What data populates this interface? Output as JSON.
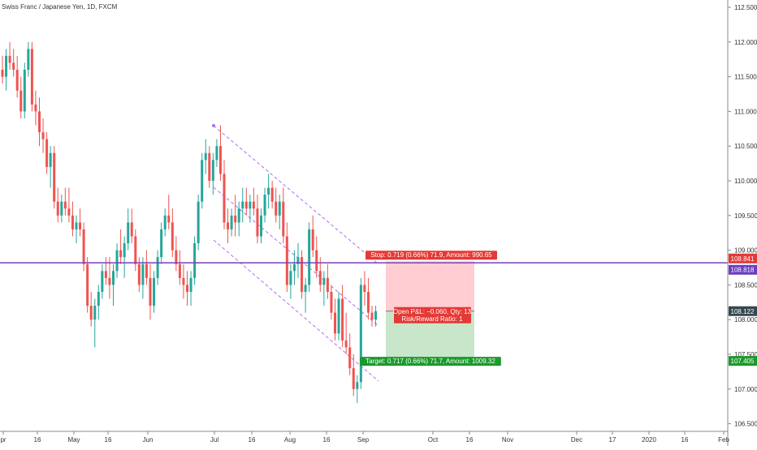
{
  "header": {
    "symbol_title": "Swiss Franc / Japanese Yen, 1D, FXCM"
  },
  "colors": {
    "up_candle": "#26a69a",
    "down_candle": "#ef5350",
    "channel": "#b36bf0",
    "horizontal_line": "#7b3fb8",
    "stop_zone": "#ffcdd2",
    "target_zone": "#c8e6c9",
    "stop_label_bg": "#e53935",
    "target_label_bg": "#1a9a2a",
    "last_price_bg": "#37474f",
    "level_red_bg": "#e53935",
    "level_purple_bg": "#6a3dbf",
    "target_price_bg": "#1a9a2a"
  },
  "price_axis": {
    "ticks": [
      "112.500",
      "112.000",
      "111.500",
      "111.000",
      "110.500",
      "110.000",
      "109.500",
      "109.000",
      "108.500",
      "108.000",
      "107.500",
      "107.000",
      "106.500"
    ],
    "min": 106.4,
    "max": 112.6
  },
  "time_axis": {
    "ticks": [
      "pr",
      "16",
      "May",
      "16",
      "Jun",
      "Jul",
      "16",
      "Aug",
      "16",
      "Sep",
      "Oct",
      "16",
      "Nov",
      "Dec",
      "17",
      "2020",
      "16",
      "Feb"
    ]
  },
  "price_labels": {
    "red_level": "108.841",
    "purple_level": "108.818",
    "last_price": "108.122",
    "target_level": "107.405"
  },
  "position": {
    "stop_label": "Stop: 0.719 (0.66%) 71.9, Amount: 990.65",
    "open_pnl_label": "Open P&L: −0.060, Qty: 13",
    "rr_label": "Risk/Reward Ratio: 1",
    "target_label": "Target: 0.717 (0.66%) 71.7, Amount: 1009.32",
    "stop_price": 108.841,
    "entry_price": 108.122,
    "target_price": 107.405
  },
  "horizontal_line_price": 108.818,
  "chart_data": {
    "type": "candlestick",
    "title": "Swiss Franc / Japanese Yen, 1D, FXCM",
    "xlabel": "",
    "ylabel": "",
    "ylim": [
      106.4,
      112.6
    ],
    "series": [
      {
        "name": "",
        "ohlc": [
          [
            111.6,
            111.8,
            111.4,
            111.5
          ],
          [
            111.5,
            111.9,
            111.3,
            111.8
          ],
          [
            111.8,
            112.0,
            111.6,
            111.7
          ],
          [
            111.7,
            111.9,
            111.5,
            111.6
          ],
          [
            111.6,
            111.8,
            111.2,
            111.3
          ],
          [
            111.3,
            111.5,
            110.9,
            111.0
          ],
          [
            111.0,
            111.7,
            110.9,
            111.6
          ],
          [
            111.6,
            112.0,
            111.5,
            111.9
          ],
          [
            111.9,
            112.0,
            111.0,
            111.1
          ],
          [
            111.1,
            111.3,
            110.8,
            111.0
          ],
          [
            111.0,
            111.2,
            110.5,
            110.7
          ],
          [
            110.7,
            110.9,
            110.4,
            110.6
          ],
          [
            110.6,
            110.7,
            110.1,
            110.2
          ],
          [
            110.2,
            110.5,
            109.9,
            110.4
          ],
          [
            110.4,
            110.5,
            109.6,
            109.7
          ],
          [
            109.7,
            109.9,
            109.4,
            109.5
          ],
          [
            109.5,
            109.8,
            109.4,
            109.7
          ],
          [
            109.7,
            109.9,
            109.5,
            109.6
          ],
          [
            109.6,
            109.9,
            109.4,
            109.5
          ],
          [
            109.5,
            109.7,
            109.2,
            109.3
          ],
          [
            109.3,
            109.5,
            109.1,
            109.4
          ],
          [
            109.4,
            109.6,
            109.2,
            109.3
          ],
          [
            109.3,
            109.4,
            108.7,
            108.8
          ],
          [
            108.8,
            108.9,
            108.1,
            108.2
          ],
          [
            108.2,
            108.4,
            107.9,
            108.0
          ],
          [
            108.0,
            108.3,
            107.6,
            108.2
          ],
          [
            108.2,
            108.5,
            108.0,
            108.4
          ],
          [
            108.4,
            108.8,
            108.3,
            108.7
          ],
          [
            108.7,
            108.9,
            108.5,
            108.6
          ],
          [
            108.6,
            108.9,
            108.3,
            108.5
          ],
          [
            108.5,
            108.8,
            108.2,
            108.7
          ],
          [
            108.7,
            109.1,
            108.6,
            109.0
          ],
          [
            109.0,
            109.3,
            108.8,
            108.9
          ],
          [
            108.9,
            109.2,
            108.6,
            109.1
          ],
          [
            109.1,
            109.6,
            109.0,
            109.4
          ],
          [
            109.4,
            109.6,
            109.1,
            109.2
          ],
          [
            109.2,
            109.3,
            108.7,
            108.8
          ],
          [
            108.8,
            108.9,
            108.4,
            108.5
          ],
          [
            108.5,
            108.9,
            108.3,
            108.8
          ],
          [
            108.8,
            109.0,
            108.5,
            108.6
          ],
          [
            108.6,
            108.8,
            108.0,
            108.2
          ],
          [
            108.2,
            108.7,
            108.1,
            108.6
          ],
          [
            108.6,
            109.0,
            108.5,
            108.9
          ],
          [
            108.9,
            109.4,
            108.8,
            109.3
          ],
          [
            109.3,
            109.6,
            109.2,
            109.5
          ],
          [
            109.5,
            109.8,
            109.3,
            109.4
          ],
          [
            109.4,
            109.6,
            108.9,
            109.0
          ],
          [
            109.0,
            109.2,
            108.7,
            108.8
          ],
          [
            108.8,
            109.0,
            108.5,
            108.6
          ],
          [
            108.6,
            108.8,
            108.3,
            108.5
          ],
          [
            108.5,
            108.7,
            108.2,
            108.4
          ],
          [
            108.4,
            108.7,
            108.2,
            108.6
          ],
          [
            108.6,
            109.2,
            108.5,
            109.1
          ],
          [
            109.1,
            109.8,
            109.0,
            109.7
          ],
          [
            109.7,
            110.4,
            109.6,
            110.3
          ],
          [
            110.3,
            110.6,
            110.1,
            110.4
          ],
          [
            110.4,
            110.5,
            109.9,
            110.0
          ],
          [
            110.0,
            110.4,
            109.8,
            110.3
          ],
          [
            110.3,
            110.6,
            110.2,
            110.5
          ],
          [
            110.5,
            110.8,
            110.0,
            110.1
          ],
          [
            110.1,
            110.3,
            109.3,
            109.4
          ],
          [
            109.4,
            109.6,
            109.1,
            109.3
          ],
          [
            109.3,
            109.6,
            109.2,
            109.5
          ],
          [
            109.5,
            109.8,
            109.2,
            109.4
          ],
          [
            109.4,
            109.7,
            109.2,
            109.6
          ],
          [
            109.6,
            109.9,
            109.4,
            109.7
          ],
          [
            109.7,
            109.9,
            109.5,
            109.6
          ],
          [
            109.6,
            109.8,
            109.4,
            109.7
          ],
          [
            109.7,
            109.9,
            109.5,
            109.6
          ],
          [
            109.6,
            109.8,
            109.1,
            109.2
          ],
          [
            109.2,
            109.6,
            109.1,
            109.5
          ],
          [
            109.5,
            109.9,
            109.4,
            109.8
          ],
          [
            109.8,
            110.1,
            109.6,
            109.9
          ],
          [
            109.9,
            110.0,
            109.6,
            109.7
          ],
          [
            109.7,
            109.9,
            109.4,
            109.5
          ],
          [
            109.5,
            109.8,
            109.3,
            109.7
          ],
          [
            109.7,
            109.9,
            109.1,
            109.2
          ],
          [
            109.2,
            109.4,
            108.4,
            108.5
          ],
          [
            108.5,
            108.8,
            108.3,
            108.7
          ],
          [
            108.7,
            109.0,
            108.5,
            108.8
          ],
          [
            108.8,
            109.1,
            108.6,
            108.9
          ],
          [
            108.9,
            109.0,
            108.3,
            108.4
          ],
          [
            108.4,
            108.6,
            108.1,
            108.5
          ],
          [
            108.5,
            109.4,
            108.4,
            109.3
          ],
          [
            109.3,
            109.5,
            108.9,
            109.0
          ],
          [
            109.0,
            109.2,
            108.6,
            108.7
          ],
          [
            108.7,
            108.9,
            108.4,
            108.5
          ],
          [
            108.5,
            108.7,
            108.2,
            108.6
          ],
          [
            108.6,
            108.8,
            108.3,
            108.4
          ],
          [
            108.4,
            108.5,
            108.0,
            108.1
          ],
          [
            108.1,
            108.3,
            107.7,
            107.8
          ],
          [
            107.8,
            108.4,
            107.7,
            108.3
          ],
          [
            108.3,
            108.5,
            107.6,
            107.7
          ],
          [
            107.7,
            108.1,
            107.5,
            107.6
          ],
          [
            107.6,
            107.8,
            107.2,
            107.3
          ],
          [
            107.3,
            107.5,
            106.9,
            107.0
          ],
          [
            107.0,
            107.2,
            106.8,
            107.1
          ],
          [
            107.1,
            108.6,
            107.0,
            108.5
          ],
          [
            108.5,
            108.7,
            108.2,
            108.4
          ],
          [
            108.4,
            108.6,
            108.0,
            108.1
          ],
          [
            108.1,
            108.2,
            107.9,
            108.0
          ],
          [
            108.0,
            108.2,
            107.9,
            108.122
          ]
        ]
      }
    ]
  }
}
